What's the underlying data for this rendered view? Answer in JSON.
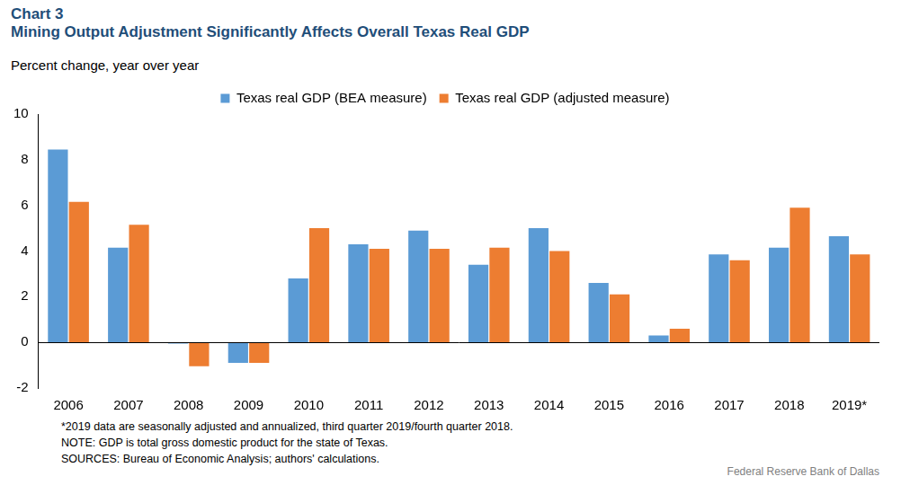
{
  "chart_data": {
    "type": "bar",
    "title": "Chart 3",
    "subtitle": "Mining Output Adjustment Significantly Affects Overall Texas Real GDP",
    "y_label": "Percent change, year over year",
    "notes": [
      "*2019 data are seasonally adjusted and annualized, third quarter 2019/fourth quarter 2018.",
      "NOTE: GDP is total gross domestic product for the state of Texas.",
      "SOURCES: Bureau of Economic Analysis; authors' calculations."
    ],
    "credit": "Federal Reserve Bank of Dallas",
    "categories": [
      "2006",
      "2007",
      "2008",
      "2009",
      "2010",
      "2011",
      "2012",
      "2013",
      "2014",
      "2015",
      "2016",
      "2017",
      "2018",
      "2019*"
    ],
    "series": [
      {
        "name": "Texas real GDP (BEA measure)",
        "color": "#5b9bd5",
        "values": [
          8.45,
          4.15,
          -0.05,
          -0.9,
          2.8,
          4.3,
          4.9,
          3.4,
          5.0,
          2.6,
          0.3,
          3.85,
          4.15,
          4.65
        ]
      },
      {
        "name": "Texas real GDP (adjusted measure)",
        "color": "#ed7d31",
        "values": [
          6.15,
          5.15,
          -1.05,
          -0.9,
          5.0,
          4.1,
          4.1,
          4.15,
          4.0,
          2.1,
          0.6,
          3.6,
          5.9,
          3.85
        ]
      }
    ],
    "ylim": [
      -2,
      10
    ],
    "yticks": [
      -2,
      0,
      2,
      4,
      6,
      8,
      10
    ],
    "grid": false,
    "legend": "top"
  }
}
